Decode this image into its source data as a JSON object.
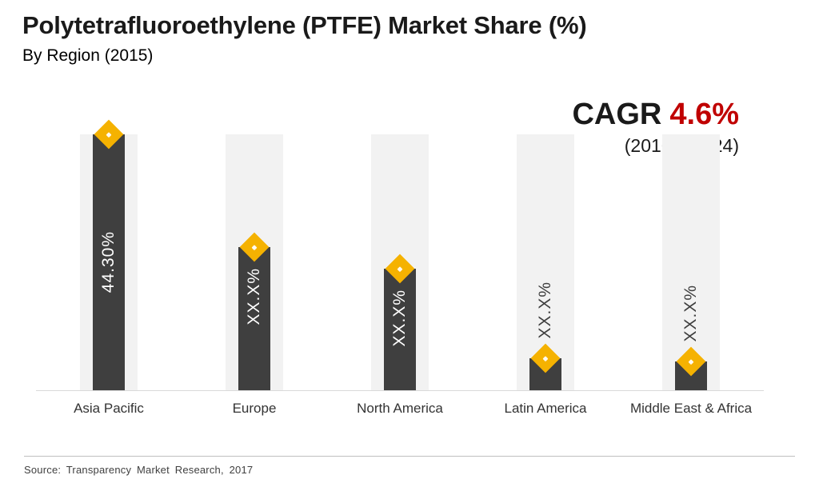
{
  "header": {
    "title": "Polytetrafluoroethylene (PTFE) Market Share (%)",
    "subtitle": "By Region (2015)"
  },
  "cagr": {
    "label": "CAGR",
    "value": "4.6%",
    "period": "(2016 – 2024)"
  },
  "chart_data": {
    "type": "bar",
    "title": "Polytetrafluoroethylene (PTFE) Market Share (%)",
    "subtitle": "By Region (2015)",
    "categories": [
      "Asia Pacific",
      "Europe",
      "North America",
      "Latin America",
      "Middle East & Africa"
    ],
    "values": [
      44.3,
      24.8,
      21.0,
      5.6,
      5.0
    ],
    "value_labels": [
      "44.30%",
      "XX.X%",
      "XX.X%",
      "XX.X%",
      "XX.X%"
    ],
    "label_positions": [
      "inside-center",
      "inside-top",
      "inside-top",
      "above",
      "above"
    ],
    "ylim": [
      0,
      44.3
    ],
    "marker": "diamond",
    "grid": "off",
    "legend": "none",
    "colors": {
      "bar": "#3F3F3F",
      "track": "#F2F2F2",
      "marker": "#F5B201",
      "label_inside": "#FFFFFF",
      "label_outside": "#3F3F3F",
      "cagr_value": "#C00000"
    }
  },
  "footer": {
    "source": "Source: Transparency Market Research, 2017"
  }
}
